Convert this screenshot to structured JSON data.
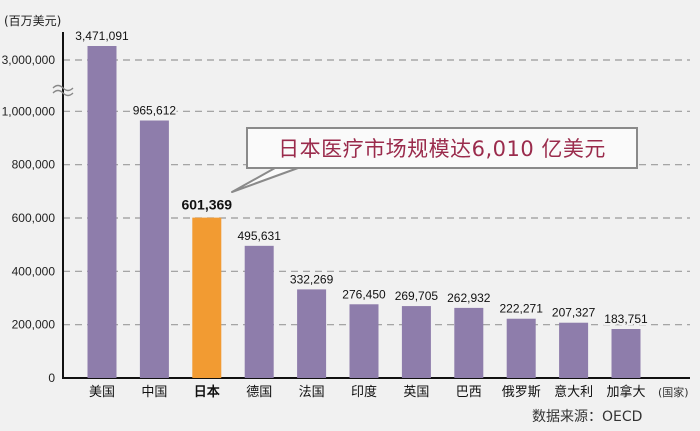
{
  "chart_data": {
    "type": "bar",
    "title": "",
    "ylabel": "(百万美元)",
    "xlabel": "(国家)",
    "categories": [
      "美国",
      "中国",
      "日本",
      "德国",
      "法国",
      "印度",
      "英国",
      "巴西",
      "俄罗斯",
      "意大利",
      "加拿大"
    ],
    "values": [
      3471091,
      965612,
      601369,
      495631,
      332269,
      276450,
      269705,
      262932,
      222271,
      207327,
      183751
    ],
    "value_labels": [
      "3,471,091",
      "965,612",
      "601,369",
      "495,631",
      "332,269",
      "276,450",
      "269,705",
      "262,932",
      "222,271",
      "207,327",
      "183,751"
    ],
    "highlight_index": 2,
    "yticks": [
      0,
      200000,
      400000,
      600000,
      800000,
      1000000,
      3000000
    ],
    "ytick_labels": [
      "0",
      "200,000",
      "400,000",
      "600,000",
      "800,000",
      "1,000,000",
      "3,000,000"
    ],
    "axis_break": [
      1100000,
      2900000
    ],
    "grid": true,
    "colors": {
      "bar": "#8e7dab",
      "highlight": "#f29b32",
      "grid": "#9a9a9a"
    }
  },
  "callout": "日本医疗市场规模达6,010 亿美元",
  "source": "数据来源：OECD"
}
